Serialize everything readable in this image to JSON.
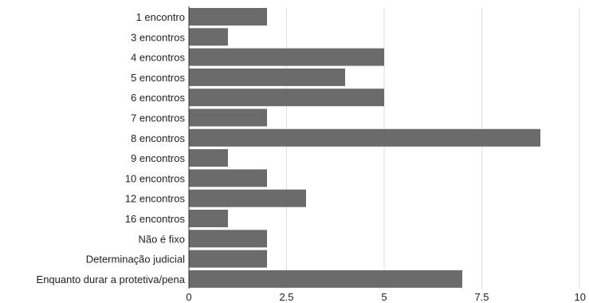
{
  "chart_data": {
    "type": "bar",
    "orientation": "horizontal",
    "categories": [
      "1 encontro",
      "3 encontros",
      "4 encontros",
      "5 encontros",
      "6 encontros",
      "7 encontros",
      "8 encontros",
      "9 encontros",
      "10 encontros",
      "12 encontros",
      "16 encontros",
      "Não é fixo",
      "Determinação judicial",
      "Enquanto durar a protetiva/pena"
    ],
    "values": [
      2,
      1,
      5,
      4,
      5,
      2,
      9,
      1,
      2,
      3,
      1,
      2,
      2,
      7
    ],
    "xlim": [
      0,
      10
    ],
    "xticks": [
      "0",
      "2.5",
      "5",
      "7.5",
      "10"
    ],
    "xtick_values": [
      0,
      2.5,
      5,
      7.5,
      10
    ],
    "grid": true,
    "legend": "none",
    "colors": {
      "bar": "#6b6b6b",
      "grid": "#dddddd",
      "axis": "#333333"
    }
  }
}
